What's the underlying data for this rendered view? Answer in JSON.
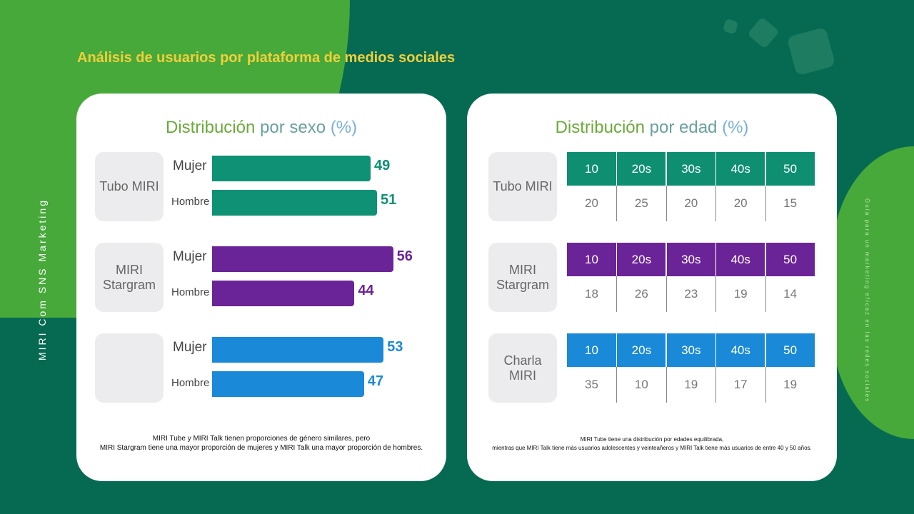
{
  "title": "Análisis de usuarios por plataforma de medios sociales",
  "side_left": "MIRI Com SNS Marketing",
  "side_right": "Guía para un marketing eficaz en las redes sociales",
  "colors": {
    "teal": "#0e9174",
    "purple": "#6b2497",
    "blue": "#1a8ad8",
    "title": "#f1cf3a"
  },
  "gender": {
    "title_a": "Distribución",
    "title_b": "por sexo",
    "title_c": "(%)",
    "groups": [
      {
        "platform": "Tubo MIRI",
        "color": "#0e9174",
        "rows": [
          {
            "label": "Mujer",
            "value": 49
          },
          {
            "label": "Hombre",
            "value": 51
          }
        ]
      },
      {
        "platform": "MIRI Stargram",
        "color": "#6b2497",
        "rows": [
          {
            "label": "Mujer",
            "value": 56
          },
          {
            "label": "Hombre",
            "value": 44
          }
        ]
      },
      {
        "platform": "",
        "color": "#1a8ad8",
        "rows": [
          {
            "label": "Mujer",
            "value": 53
          },
          {
            "label": "Hombre",
            "value": 47
          }
        ]
      }
    ],
    "note_1": "MIRI Tube y MIRI Talk tienen proporciones de género similares, pero",
    "note_2": "MIRI Stargram tiene una mayor proporción de mujeres y MIRI Talk una mayor proporción de hombres."
  },
  "age": {
    "title_a": "Distribución",
    "title_b": "por edad",
    "title_c": "(%)",
    "headers": [
      "10",
      "20s",
      "30s",
      "40s",
      "50"
    ],
    "groups": [
      {
        "platform": "Tubo MIRI",
        "color": "#0e8f72",
        "values": [
          "20",
          "25",
          "20",
          "20",
          "15"
        ]
      },
      {
        "platform": "MIRI Stargram",
        "color": "#6b2497",
        "values": [
          "18",
          "26",
          "23",
          "19",
          "14"
        ]
      },
      {
        "platform": "Charla MIRI",
        "color": "#1a8ad8",
        "values": [
          "35",
          "10",
          "19",
          "17",
          "19"
        ]
      }
    ],
    "note_1": "MIRI Tube tiene una distribución por edades equilibrada,",
    "note_2": "mientras que MIRI Talk tiene más usuarios adolescentes y veinteañeros y MIRI Talk tiene más usuarios de entre 40 y 50 años."
  }
}
